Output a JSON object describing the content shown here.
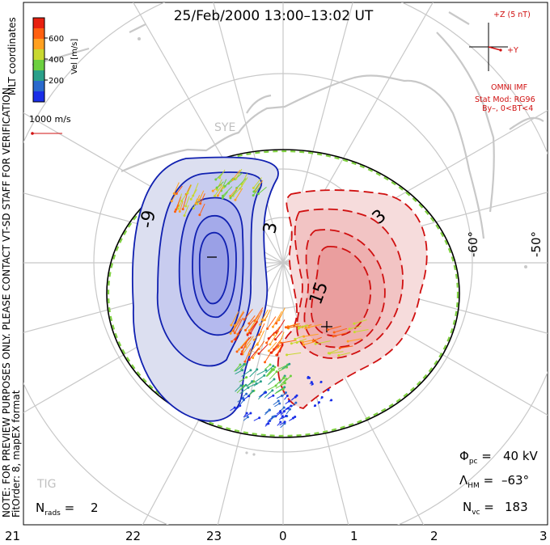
{
  "title": "25/Feb/2000 13:00–13:02 UT",
  "side_note": "NOTE: FOR PREVIEW PURPOSES ONLY. PLEASE CONTACT VT-SD STAFF FOR VERIFICATION.",
  "fit_note": "FitOrder: 8, mapEX format",
  "coords_label": "MLT coordinates",
  "colorbar": {
    "label": "Vel [m/s]",
    "ticks": [
      "200",
      "400",
      "600"
    ],
    "colors": [
      "#1a2ee8",
      "#2a6acd",
      "#2aa08a",
      "#6cd040",
      "#c8d830",
      "#ffa020",
      "#ff6010",
      "#e82010"
    ]
  },
  "scale_vector": "1000 m/s",
  "station": "SYE",
  "station2": "TIG",
  "imf": {
    "z_label": "+Z (5 nT)",
    "y_label": "+Y",
    "source": "OMNI IMF",
    "model": "Stat Mod: RG96",
    "condition": "By–, 0<BT<4"
  },
  "contour_labels": [
    "-9",
    "3",
    "3",
    "15"
  ],
  "lat_labels": [
    "-60°",
    "-50°"
  ],
  "stats": {
    "phi_pc": "40 kV",
    "lambda_hm": "–63°",
    "n_vc": "183",
    "n_rads": "2"
  },
  "mlt_ticks": [
    "21",
    "22",
    "23",
    "0",
    "1",
    "2",
    "3"
  ],
  "colors": {
    "negative_cell": "#1020b0",
    "positive_cell": "#d01010",
    "grid": "#c8c8c8",
    "land": "#c8c8c8"
  }
}
